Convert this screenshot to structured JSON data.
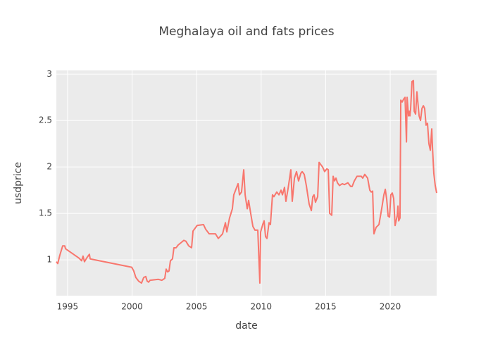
{
  "chart_data": {
    "type": "line",
    "title": "Meghalaya oil and fats prices",
    "x_label": "date",
    "y_label": "usdprice",
    "color": "#f8766d",
    "grid": true,
    "xlim": [
      1994.13,
      2023.6
    ],
    "ylim": [
      0.614,
      3.04
    ],
    "xticks": [
      1995,
      2000,
      2005,
      2010,
      2015,
      2020
    ],
    "yticks": [
      1,
      1.5,
      2,
      2.5,
      3
    ],
    "x": [
      1994.13,
      1994.24,
      1994.4,
      1994.62,
      1994.78,
      1994.84,
      1995.87,
      1996.09,
      1996.2,
      1996.31,
      1996.53,
      1996.69,
      1996.75,
      1999.97,
      2000.13,
      2000.29,
      2000.51,
      2000.73,
      2000.9,
      2001.06,
      2001.17,
      2001.28,
      2001.39,
      2002.04,
      2002.31,
      2002.53,
      2002.64,
      2002.75,
      2002.86,
      2002.97,
      2003.13,
      2003.24,
      2003.41,
      2003.57,
      2003.84,
      2004.01,
      2004.17,
      2004.39,
      2004.61,
      2004.72,
      2005.04,
      2005.53,
      2005.7,
      2005.97,
      2006.46,
      2006.68,
      2007.01,
      2007.23,
      2007.34,
      2007.55,
      2007.77,
      2007.88,
      2008.1,
      2008.21,
      2008.32,
      2008.48,
      2008.65,
      2008.76,
      2008.92,
      2009.03,
      2009.19,
      2009.36,
      2009.52,
      2009.74,
      2009.9,
      2009.96,
      2010.12,
      2010.23,
      2010.34,
      2010.45,
      2010.61,
      2010.72,
      2010.88,
      2010.99,
      2011.21,
      2011.38,
      2011.54,
      2011.65,
      2011.81,
      2011.92,
      2012.09,
      2012.3,
      2012.41,
      2012.58,
      2012.74,
      2012.9,
      2013.07,
      2013.18,
      2013.34,
      2013.5,
      2013.72,
      2013.89,
      2014.0,
      2014.1,
      2014.21,
      2014.38,
      2014.49,
      2014.65,
      2014.76,
      2014.92,
      2015.09,
      2015.2,
      2015.31,
      2015.47,
      2015.58,
      2015.69,
      2015.8,
      2015.91,
      2016.07,
      2016.29,
      2016.45,
      2016.72,
      2016.94,
      2017.05,
      2017.22,
      2017.43,
      2017.76,
      2017.87,
      2018.03,
      2018.25,
      2018.42,
      2018.53,
      2018.64,
      2018.74,
      2018.91,
      2019.13,
      2019.34,
      2019.51,
      2019.62,
      2019.73,
      2019.84,
      2019.95,
      2020.05,
      2020.16,
      2020.27,
      2020.38,
      2020.55,
      2020.6,
      2020.66,
      2020.76,
      2020.82,
      2020.93,
      2021.04,
      2021.15,
      2021.26,
      2021.31,
      2021.42,
      2021.47,
      2021.53,
      2021.58,
      2021.69,
      2021.8,
      2021.86,
      2021.97,
      2022.07,
      2022.24,
      2022.35,
      2022.46,
      2022.57,
      2022.67,
      2022.78,
      2022.89,
      2023.0,
      2023.11,
      2023.22,
      2023.28,
      2023.38,
      2023.49,
      2023.6
    ],
    "values": [
      0.98,
      0.96,
      1.05,
      1.15,
      1.15,
      1.12,
      1.02,
      0.99,
      1.04,
      0.98,
      1.03,
      1.06,
      1.01,
      0.92,
      0.88,
      0.81,
      0.77,
      0.75,
      0.81,
      0.82,
      0.77,
      0.76,
      0.78,
      0.79,
      0.78,
      0.8,
      0.9,
      0.87,
      0.88,
      0.99,
      1.01,
      1.13,
      1.13,
      1.16,
      1.19,
      1.21,
      1.2,
      1.15,
      1.13,
      1.31,
      1.37,
      1.38,
      1.33,
      1.28,
      1.28,
      1.23,
      1.28,
      1.4,
      1.3,
      1.45,
      1.55,
      1.7,
      1.78,
      1.82,
      1.7,
      1.73,
      1.97,
      1.7,
      1.55,
      1.64,
      1.5,
      1.36,
      1.32,
      1.32,
      0.75,
      1.3,
      1.38,
      1.42,
      1.25,
      1.23,
      1.4,
      1.38,
      1.7,
      1.68,
      1.73,
      1.7,
      1.75,
      1.7,
      1.78,
      1.63,
      1.77,
      1.97,
      1.63,
      1.88,
      1.95,
      1.85,
      1.93,
      1.95,
      1.92,
      1.8,
      1.6,
      1.53,
      1.68,
      1.7,
      1.62,
      1.68,
      2.05,
      2.02,
      2.0,
      1.95,
      1.98,
      1.97,
      1.5,
      1.48,
      1.9,
      1.85,
      1.88,
      1.83,
      1.8,
      1.82,
      1.81,
      1.83,
      1.79,
      1.79,
      1.85,
      1.9,
      1.9,
      1.88,
      1.92,
      1.88,
      1.75,
      1.73,
      1.74,
      1.28,
      1.35,
      1.38,
      1.55,
      1.7,
      1.76,
      1.65,
      1.47,
      1.46,
      1.7,
      1.72,
      1.66,
      1.37,
      1.48,
      1.58,
      1.42,
      1.45,
      2.72,
      2.7,
      2.73,
      2.75,
      2.27,
      2.75,
      2.55,
      2.6,
      2.55,
      2.62,
      2.92,
      2.93,
      2.6,
      2.57,
      2.81,
      2.55,
      2.5,
      2.63,
      2.66,
      2.63,
      2.45,
      2.47,
      2.25,
      2.18,
      2.41,
      2.2,
      1.93,
      1.8,
      1.72
    ]
  }
}
